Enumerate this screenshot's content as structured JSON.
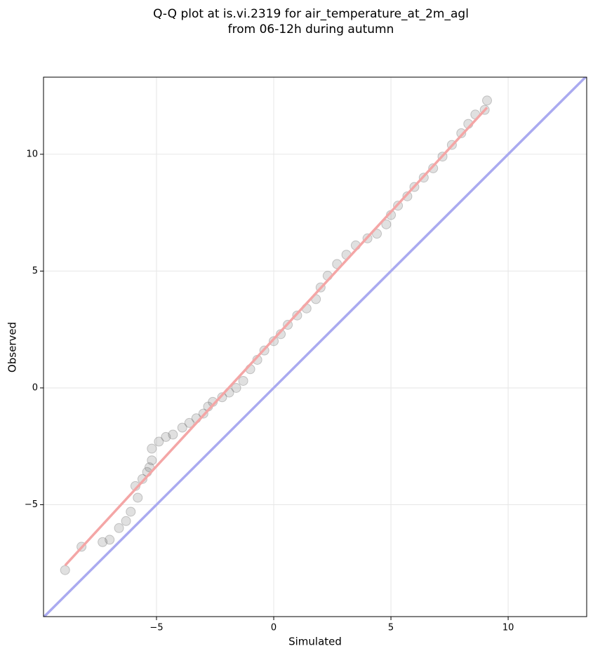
{
  "chart_data": {
    "type": "scatter",
    "title": [
      "Q-Q plot at is.vi.2319 for air_temperature_at_2m_agl",
      "from 06-12h during autumn"
    ],
    "x_label": "Simulated",
    "y_label": "Observed",
    "xlim": [
      -9.82,
      13.35
    ],
    "ylim": [
      -9.79,
      13.3
    ],
    "xticks": [
      {
        "value": -5,
        "label": "−5"
      },
      0,
      5,
      10
    ],
    "yticks": [
      {
        "value": -5,
        "label": "−5"
      },
      0,
      5,
      10
    ],
    "grid": true,
    "color": "#555555",
    "x": [
      -8.9,
      -8.2,
      -7.3,
      -7.0,
      -6.6,
      -6.3,
      -6.1,
      -5.8,
      -5.9,
      -5.6,
      -5.4,
      -5.3,
      -5.2,
      -5.2,
      -4.9,
      -4.6,
      -4.3,
      -3.9,
      -3.6,
      -3.3,
      -3.0,
      -2.8,
      -2.6,
      -2.2,
      -1.9,
      -1.6,
      -1.3,
      -1.0,
      -0.7,
      -0.4,
      0,
      0.3,
      0.6,
      1.0,
      1.4,
      1.8,
      2.0,
      2.3,
      2.7,
      3.1,
      3.5,
      4.0,
      4.4,
      4.8,
      5.0,
      5.3,
      5.7,
      6.0,
      6.4,
      6.8,
      7.2,
      7.6,
      8.0,
      8.3,
      8.6,
      9.0,
      9.1
    ],
    "values": [
      -7.8,
      -6.8,
      -6.6,
      -6.5,
      -6.0,
      -5.7,
      -5.3,
      -4.7,
      -4.2,
      -3.9,
      -3.6,
      -3.4,
      -3.1,
      -2.6,
      -2.3,
      -2.1,
      -2.0,
      -1.7,
      -1.5,
      -1.3,
      -1.1,
      -0.8,
      -0.6,
      -0.4,
      -0.2,
      0.0,
      0.3,
      0.8,
      1.2,
      1.6,
      2.0,
      2.3,
      2.7,
      3.1,
      3.4,
      3.8,
      4.3,
      4.8,
      5.3,
      5.7,
      6.1,
      6.4,
      6.6,
      7.0,
      7.4,
      7.8,
      8.2,
      8.6,
      9.0,
      9.4,
      9.9,
      10.4,
      10.9,
      11.3,
      11.7,
      11.9,
      12.3
    ],
    "reference_lines": [
      {
        "color": "#aaaaf0",
        "x": [
          -9.82,
          13.35
        ],
        "y": [
          -9.82,
          13.35
        ]
      },
      {
        "color": "#f4a6a6",
        "x": [
          -8.9,
          9.1
        ],
        "y": [
          -7.6,
          12.0
        ]
      }
    ]
  }
}
